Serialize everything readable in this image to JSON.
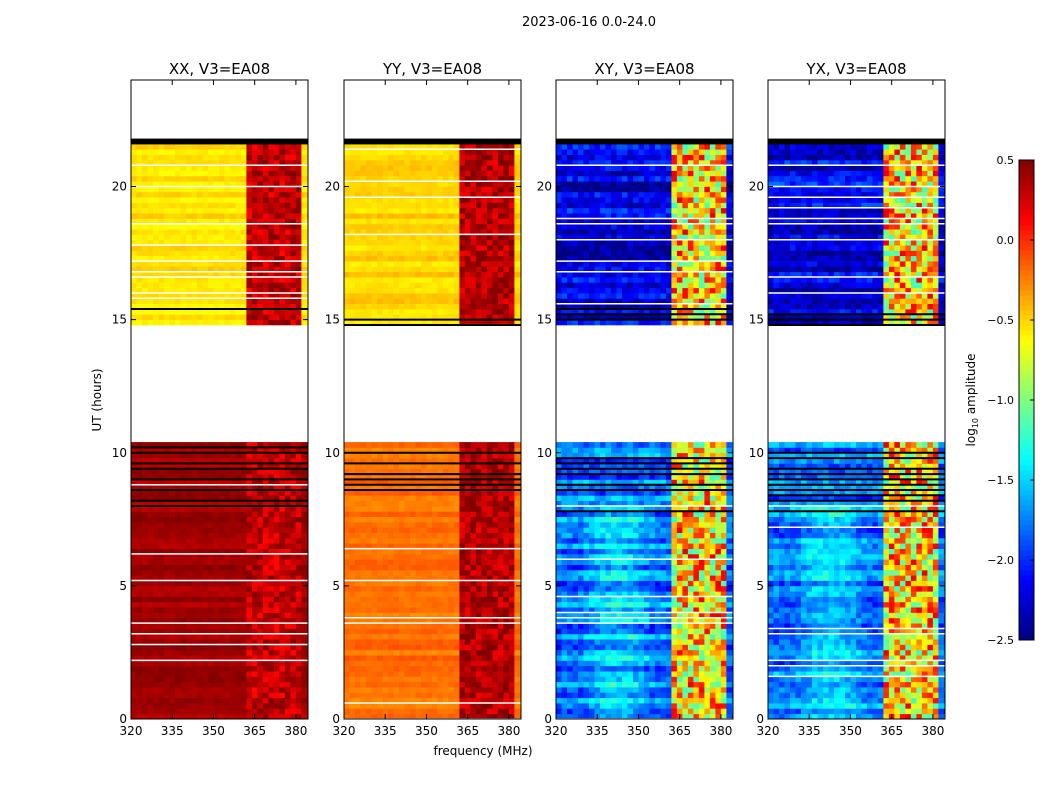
{
  "chart_data": {
    "type": "heatmap",
    "title": "2023-06-16 0.0-24.0",
    "xlabel": "frequency (MHz)",
    "ylabel": "UT (hours)",
    "xlim": [
      320,
      384.4
    ],
    "ylim": [
      0,
      24
    ],
    "xticks": [
      320,
      335,
      350,
      365,
      380
    ],
    "yticks": [
      0,
      5,
      10,
      15,
      20
    ],
    "colorbar": {
      "label": "log10 amplitude",
      "label_main": "log",
      "label_sub": "10",
      "label_rest": " amplitude",
      "range": [
        -2.5,
        0.5
      ],
      "ticks": [
        "0.5",
        "0.0",
        "−0.5",
        "−1.0",
        "−1.5",
        "−2.0",
        "−2.5"
      ],
      "tick_values": [
        0.5,
        0.0,
        -0.5,
        -1.0,
        -1.5,
        -2.0,
        -2.5
      ],
      "colormap": "jet"
    },
    "time_segments": [
      {
        "start": 0,
        "end": 7.9,
        "state": "data"
      },
      {
        "start": 7.9,
        "end": 10.3,
        "state": "data-flagged-lines"
      },
      {
        "start": 10.3,
        "end": 14.7,
        "state": "empty"
      },
      {
        "start": 14.7,
        "end": 15.6,
        "state": "data-flagged-lines"
      },
      {
        "start": 15.6,
        "end": 21.5,
        "state": "data"
      },
      {
        "start": 21.5,
        "end": 21.7,
        "state": "flagged"
      },
      {
        "start": 21.7,
        "end": 24,
        "state": "empty"
      }
    ],
    "rfi_band_mhz": [
      363,
      381
    ],
    "panels": [
      {
        "title": "XX, V3=EA08",
        "early_level": 0.4,
        "late_level": -0.55,
        "band_level": 0.3
      },
      {
        "title": "YY, V3=EA08",
        "early_level": -0.2,
        "late_level": -0.5,
        "band_level": 0.35
      },
      {
        "title": "XY, V3=EA08",
        "early_level": -1.8,
        "late_level": -2.2,
        "band_level": -0.5
      },
      {
        "title": "YX, V3=EA08",
        "early_level": -1.8,
        "late_level": -2.2,
        "band_level": -0.5
      }
    ]
  }
}
